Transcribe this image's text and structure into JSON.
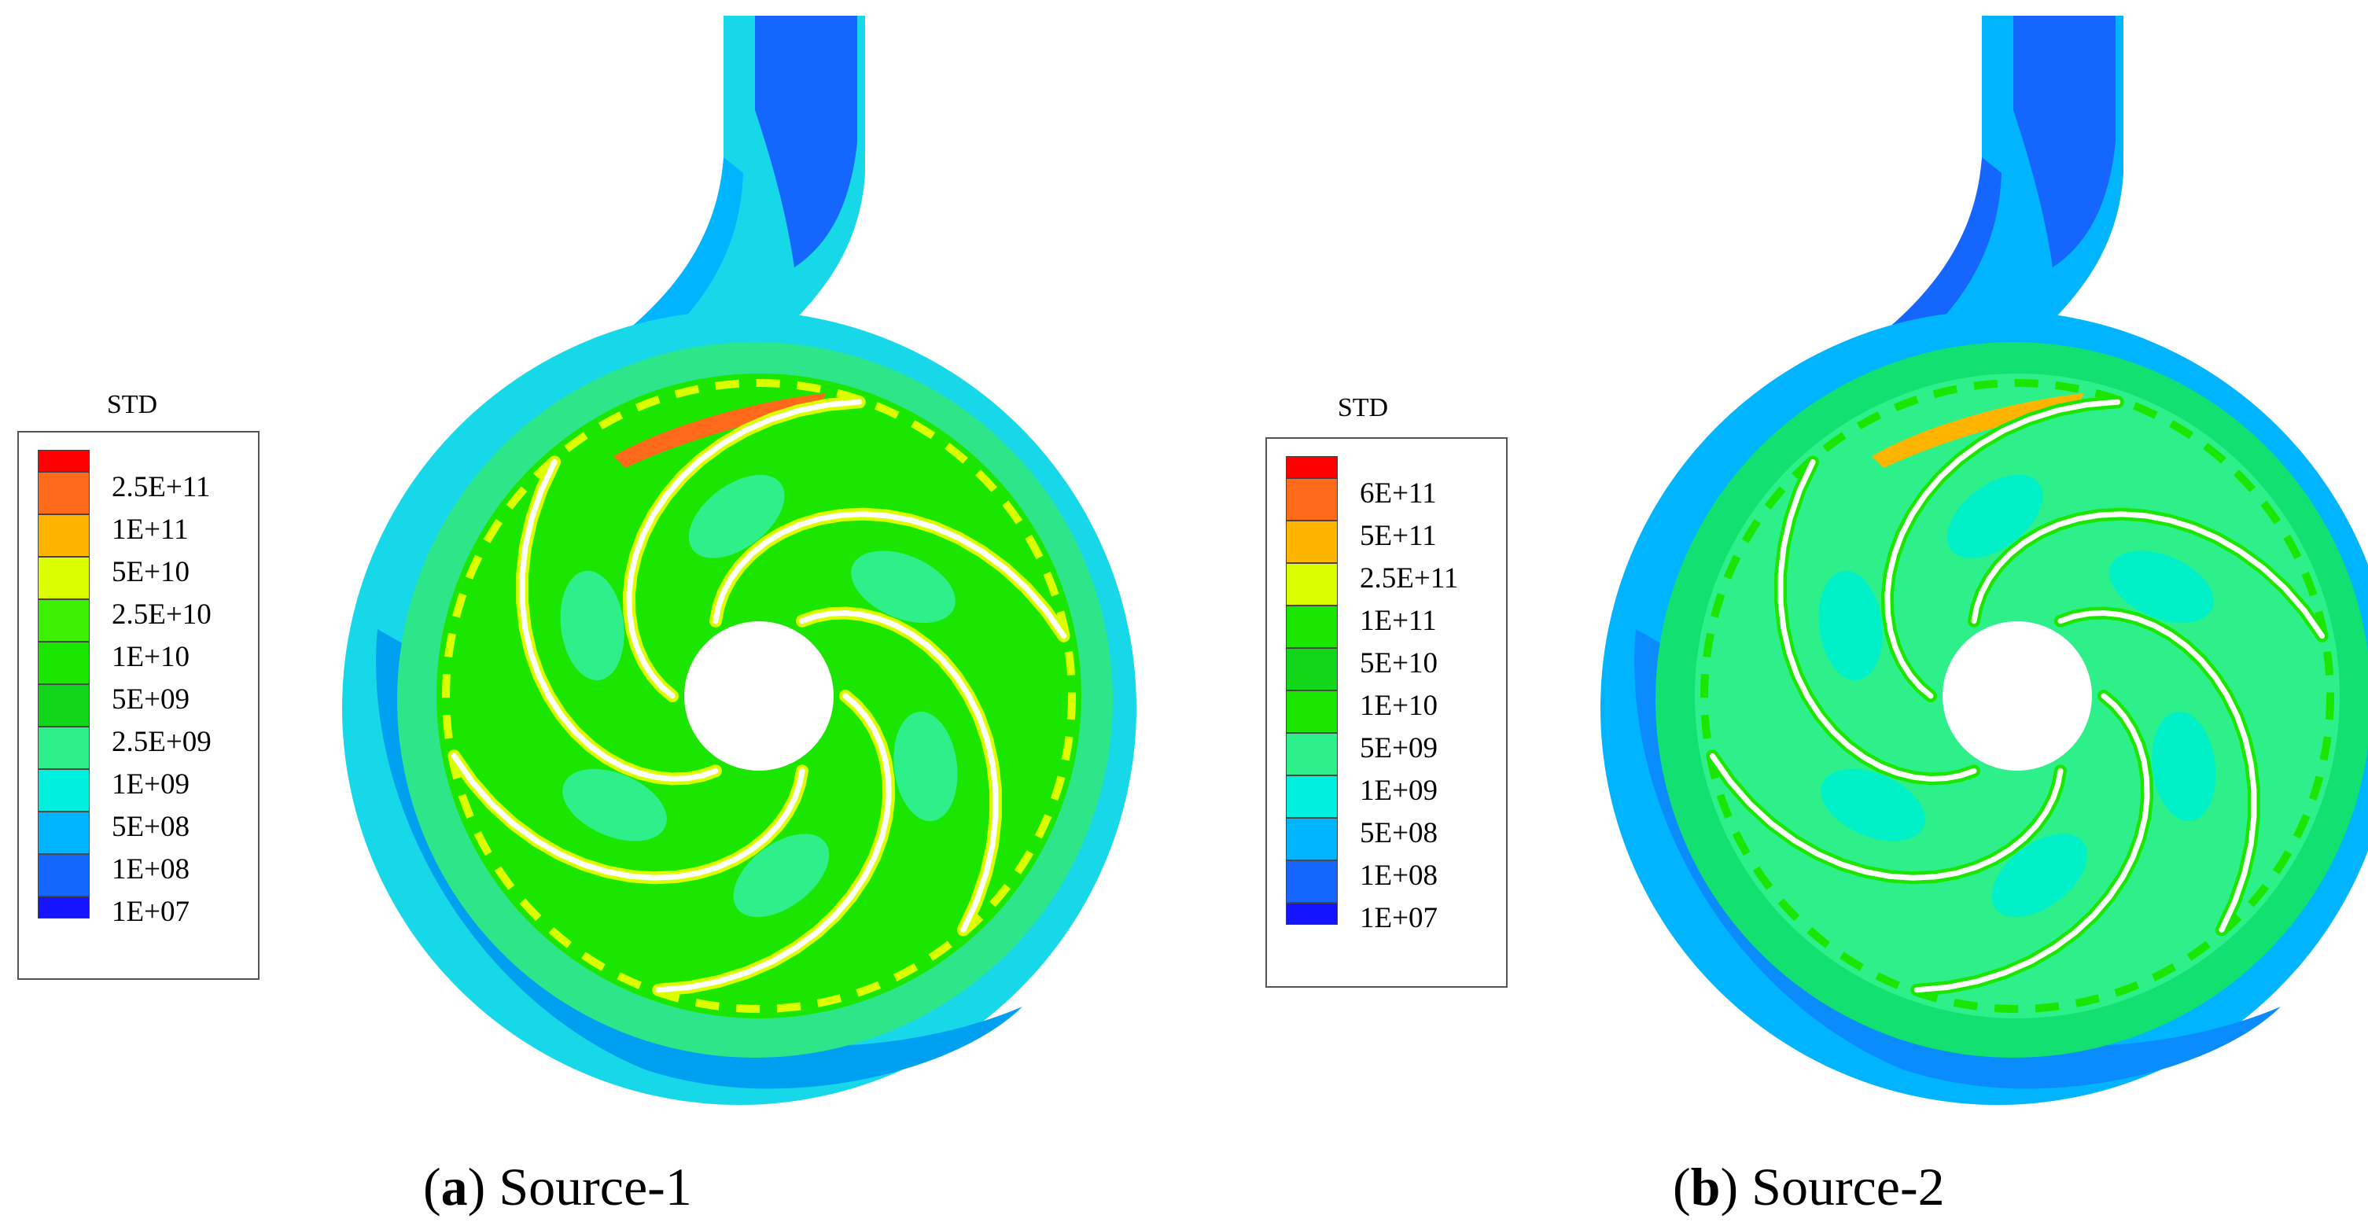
{
  "panels": [
    {
      "legend": {
        "title": "STD",
        "levels": [
          {
            "label": "2.5E+11",
            "color": "#ff6a1a"
          },
          {
            "label": "1E+11",
            "color": "#ffb400"
          },
          {
            "label": "5E+10",
            "color": "#dcff00"
          },
          {
            "label": "2.5E+10",
            "color": "#3cf000"
          },
          {
            "label": "1E+10",
            "color": "#1ae600"
          },
          {
            "label": "5E+09",
            "color": "#12d61a"
          },
          {
            "label": "2.5E+09",
            "color": "#2ef08a"
          },
          {
            "label": "1E+09",
            "color": "#00f0e0"
          },
          {
            "label": "5E+08",
            "color": "#00b4ff"
          },
          {
            "label": "1E+08",
            "color": "#1466ff"
          },
          {
            "label": "1E+07",
            "color": "#1414ff"
          }
        ],
        "top_color": "#ff0000"
      },
      "caption": {
        "letter": "a",
        "text": "Source-1"
      }
    },
    {
      "legend": {
        "title": "STD",
        "levels": [
          {
            "label": "6E+11",
            "color": "#ff6a1a"
          },
          {
            "label": "5E+11",
            "color": "#ffb400"
          },
          {
            "label": "2.5E+11",
            "color": "#dcff00"
          },
          {
            "label": "1E+11",
            "color": "#1ae600"
          },
          {
            "label": "5E+10",
            "color": "#12d61a"
          },
          {
            "label": "1E+10",
            "color": "#1ae600"
          },
          {
            "label": "5E+09",
            "color": "#2ef08a"
          },
          {
            "label": "1E+09",
            "color": "#00f0e0"
          },
          {
            "label": "5E+08",
            "color": "#00b4ff"
          },
          {
            "label": "1E+08",
            "color": "#1466ff"
          },
          {
            "label": "1E+07",
            "color": "#1414ff"
          }
        ],
        "top_color": "#ff0000"
      },
      "caption": {
        "letter": "b",
        "text": "Source-2"
      }
    }
  ]
}
